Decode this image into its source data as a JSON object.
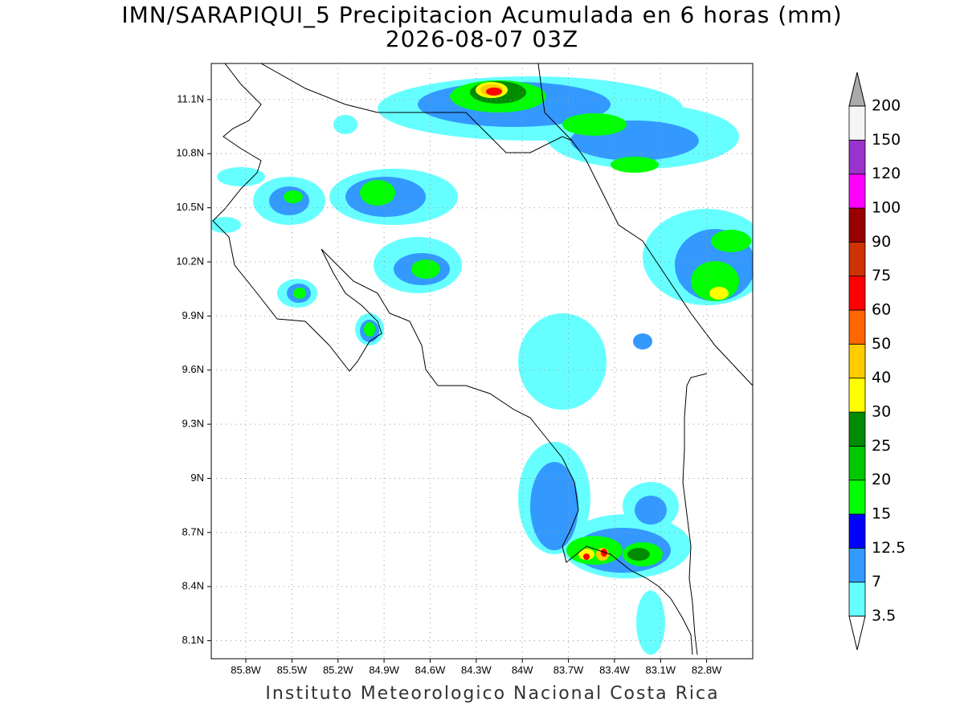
{
  "header": {
    "title": "IMN/SARAPIQUI_5 Precipitacion Acumulada en 6 horas (mm)",
    "subtitle": "2026-08-07 03Z"
  },
  "map": {
    "xlim": [
      -86.025,
      -82.5
    ],
    "ylim": [
      8.0,
      11.3
    ],
    "grid": true,
    "xticks": [
      {
        "value": -85.8,
        "label": "85.8W"
      },
      {
        "value": -85.5,
        "label": "85.5W"
      },
      {
        "value": -85.2,
        "label": "85.2W"
      },
      {
        "value": -84.9,
        "label": "84.9W"
      },
      {
        "value": -84.6,
        "label": "84.6W"
      },
      {
        "value": -84.3,
        "label": "84.3W"
      },
      {
        "value": -84.0,
        "label": "84W"
      },
      {
        "value": -83.7,
        "label": "83.7W"
      },
      {
        "value": -83.4,
        "label": "83.4W"
      },
      {
        "value": -83.1,
        "label": "83.1W"
      },
      {
        "value": -82.8,
        "label": "82.8W"
      }
    ],
    "yticks": [
      {
        "value": 8.1,
        "label": "8.1N"
      },
      {
        "value": 8.4,
        "label": "8.4N"
      },
      {
        "value": 8.7,
        "label": "8.7N"
      },
      {
        "value": 9.0,
        "label": "9N"
      },
      {
        "value": 9.3,
        "label": "9.3N"
      },
      {
        "value": 9.6,
        "label": "9.6N"
      },
      {
        "value": 9.9,
        "label": "9.9N"
      },
      {
        "value": 10.2,
        "label": "10.2N"
      },
      {
        "value": 10.5,
        "label": "10.5N"
      },
      {
        "value": 10.8,
        "label": "10.8N"
      },
      {
        "value": 11.1,
        "label": "11.1N"
      }
    ]
  },
  "legend": {
    "levels": [
      3.5,
      7,
      12.5,
      15,
      20,
      25,
      30,
      40,
      50,
      60,
      75,
      90,
      100,
      120,
      150,
      200
    ],
    "colors": [
      "#66ffff",
      "#3399ff",
      "#0000ff",
      "#00ff00",
      "#00c800",
      "#008c00",
      "#ffff00",
      "#ffcc00",
      "#ff6600",
      "#ff0000",
      "#cc3300",
      "#990000",
      "#ff00ff",
      "#9933cc",
      "#f5f5f5"
    ],
    "below_color": "#ffffff",
    "above_color": "#aaaaaa"
  },
  "footer": "Instituto Meteorologico Nacional Costa Rica"
}
